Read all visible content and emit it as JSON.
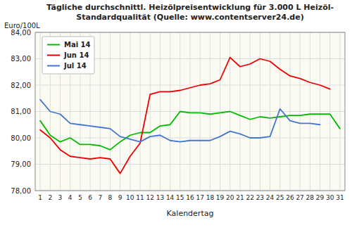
{
  "chart_data": {
    "type": "line",
    "title": "Tägliche durchschnittl. Heizölpreisentwicklung für 3.000 L Heizöl-",
    "subtitle": "Standardqualität (Quelle: www.contentserver24.de)",
    "y_label": "Euro/100L",
    "x_label": "Kalendertag",
    "x": [
      1,
      2,
      3,
      4,
      5,
      6,
      7,
      8,
      9,
      10,
      11,
      12,
      13,
      14,
      15,
      16,
      17,
      18,
      19,
      20,
      21,
      22,
      23,
      24,
      25,
      26,
      27,
      28,
      29,
      30,
      31
    ],
    "xlim": [
      0.5,
      31.5
    ],
    "xticks": [
      1,
      2,
      3,
      4,
      5,
      6,
      7,
      8,
      9,
      10,
      11,
      12,
      13,
      14,
      15,
      16,
      17,
      18,
      19,
      20,
      21,
      22,
      23,
      24,
      25,
      26,
      27,
      28,
      29,
      30,
      31
    ],
    "ylim": [
      78.0,
      84.0
    ],
    "yticks": [
      {
        "value": 78.0,
        "label": "78,00"
      },
      {
        "value": 79.0,
        "label": "79,00"
      },
      {
        "value": 80.0,
        "label": "80,00"
      },
      {
        "value": 81.0,
        "label": "81,00"
      },
      {
        "value": 82.0,
        "label": "82,00"
      },
      {
        "value": 83.0,
        "label": "83,00"
      },
      {
        "value": 84.0,
        "label": "84,00"
      }
    ],
    "grid": true,
    "legend": "upper left",
    "series": [
      {
        "name": "Mai 14",
        "color": "#00BB00",
        "values": [
          80.65,
          80.1,
          79.85,
          80.0,
          79.75,
          79.75,
          79.7,
          79.55,
          79.85,
          80.1,
          80.2,
          80.2,
          80.45,
          80.5,
          81.0,
          80.95,
          80.95,
          80.9,
          80.95,
          81.0,
          80.85,
          80.7,
          80.8,
          80.75,
          80.8,
          80.85,
          80.85,
          80.9,
          80.9,
          80.9,
          80.35
        ]
      },
      {
        "name": "Jun 14",
        "color": "#EE0000",
        "values": [
          80.3,
          80.0,
          79.55,
          79.3,
          79.25,
          79.2,
          79.25,
          79.2,
          78.65,
          79.3,
          79.8,
          81.65,
          81.75,
          81.75,
          81.8,
          81.9,
          82.0,
          82.05,
          82.2,
          83.05,
          82.7,
          82.8,
          83.0,
          82.9,
          82.6,
          82.35,
          82.25,
          82.1,
          82.0,
          81.85,
          null
        ]
      },
      {
        "name": "Jul 14",
        "color": "#4477CC",
        "values": [
          81.45,
          81.0,
          80.9,
          80.55,
          80.5,
          80.45,
          80.4,
          80.35,
          80.05,
          79.95,
          79.85,
          80.05,
          80.1,
          79.9,
          79.85,
          79.9,
          79.9,
          79.9,
          80.05,
          80.25,
          80.15,
          80.0,
          80.0,
          80.05,
          81.1,
          80.65,
          80.55,
          80.55,
          80.5,
          null,
          null
        ]
      }
    ]
  }
}
